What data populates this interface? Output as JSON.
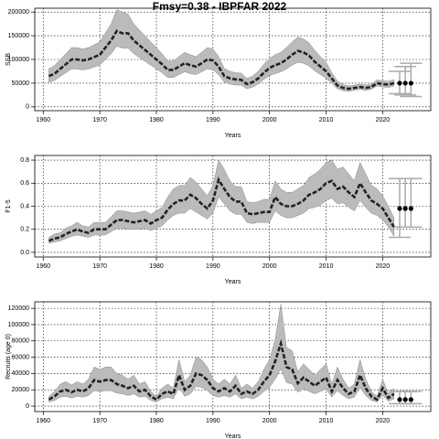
{
  "chart_data": [
    {
      "type": "line",
      "title": "Fmsy=0.38 - IBPFAR 2022",
      "x_label": "Years",
      "y_label": "SSB",
      "grid": true,
      "color": "#222222",
      "band_color": "#bbbbbb",
      "proj_color": "#aaaaaa",
      "xlim": [
        1958.5,
        2028.5
      ],
      "xticks": [
        1960,
        1970,
        1980,
        1990,
        2000,
        2010,
        2020
      ],
      "ylim": [
        -8000,
        208000
      ],
      "yticks": [
        0,
        50000,
        100000,
        150000,
        200000
      ],
      "x": [
        1961,
        1962,
        1963,
        1964,
        1965,
        1966,
        1967,
        1968,
        1969,
        1970,
        1971,
        1972,
        1973,
        1974,
        1975,
        1976,
        1977,
        1978,
        1979,
        1980,
        1981,
        1982,
        1983,
        1984,
        1985,
        1986,
        1987,
        1988,
        1989,
        1990,
        1991,
        1992,
        1993,
        1994,
        1995,
        1996,
        1997,
        1998,
        1999,
        2000,
        2001,
        2002,
        2003,
        2004,
        2005,
        2006,
        2007,
        2008,
        2009,
        2010,
        2011,
        2012,
        2013,
        2014,
        2015,
        2016,
        2017,
        2018,
        2019,
        2020,
        2021,
        2022
      ],
      "values": [
        65000,
        70000,
        80000,
        90000,
        100000,
        100000,
        98000,
        100000,
        105000,
        110000,
        125000,
        140000,
        160000,
        155000,
        155000,
        140000,
        130000,
        120000,
        110000,
        100000,
        90000,
        78000,
        78000,
        85000,
        92000,
        88000,
        85000,
        92000,
        100000,
        98000,
        85000,
        65000,
        60000,
        58000,
        57000,
        48000,
        52000,
        60000,
        72000,
        82000,
        88000,
        92000,
        100000,
        110000,
        118000,
        115000,
        108000,
        95000,
        85000,
        75000,
        60000,
        45000,
        40000,
        38000,
        40000,
        42000,
        40000,
        42000,
        50000,
        48000,
        47000,
        50000
      ],
      "lower": [
        52000,
        56000,
        64000,
        72000,
        80000,
        80000,
        78000,
        80000,
        84000,
        88000,
        100000,
        112000,
        128000,
        124000,
        124000,
        112000,
        104000,
        96000,
        88000,
        80000,
        72000,
        62000,
        62000,
        68000,
        74000,
        70000,
        68000,
        74000,
        80000,
        78000,
        68000,
        52000,
        48000,
        46000,
        46000,
        38000,
        42000,
        48000,
        58000,
        66000,
        70000,
        74000,
        80000,
        88000,
        94000,
        92000,
        86000,
        76000,
        68000,
        60000,
        50000,
        38000,
        34000,
        33000,
        35000,
        37000,
        35000,
        37000,
        44000,
        42000,
        41000,
        44000
      ],
      "upper": [
        80000,
        87000,
        100000,
        112000,
        125000,
        125000,
        122000,
        125000,
        131000,
        137000,
        156000,
        175000,
        205000,
        200000,
        195000,
        175000,
        162000,
        150000,
        137000,
        125000,
        112000,
        97000,
        97000,
        106000,
        115000,
        110000,
        106000,
        115000,
        125000,
        122000,
        106000,
        81000,
        75000,
        72000,
        71000,
        60000,
        65000,
        75000,
        90000,
        102000,
        110000,
        115000,
        125000,
        137000,
        147000,
        143000,
        135000,
        119000,
        106000,
        94000,
        72000,
        54000,
        47000,
        44000,
        46000,
        48000,
        46000,
        48000,
        57000,
        55000,
        54000,
        57000
      ],
      "proj_x": [
        2023,
        2024,
        2025
      ],
      "proj_values": [
        50000,
        50000,
        50000
      ],
      "proj_lower": [
        28000,
        25000,
        22000
      ],
      "proj_upper": [
        75000,
        85000,
        92000
      ]
    },
    {
      "type": "line",
      "x_label": "Years",
      "y_label": "F1-5",
      "grid": true,
      "color": "#222222",
      "band_color": "#bbbbbb",
      "proj_color": "#aaaaaa",
      "xlim": [
        1958.5,
        2028.5
      ],
      "xticks": [
        1960,
        1970,
        1980,
        1990,
        2000,
        2010,
        2020
      ],
      "ylim": [
        -0.04,
        0.84
      ],
      "yticks": [
        {
          "value": 0,
          "label": "0.0"
        },
        0.2,
        0.4,
        0.6,
        0.8
      ],
      "x": [
        1961,
        1962,
        1963,
        1964,
        1965,
        1966,
        1967,
        1968,
        1969,
        1970,
        1971,
        1972,
        1973,
        1974,
        1975,
        1976,
        1977,
        1978,
        1979,
        1980,
        1981,
        1982,
        1983,
        1984,
        1985,
        1986,
        1987,
        1988,
        1989,
        1990,
        1991,
        1992,
        1993,
        1994,
        1995,
        1996,
        1997,
        1998,
        1999,
        2000,
        2001,
        2002,
        2003,
        2004,
        2005,
        2006,
        2007,
        2008,
        2009,
        2010,
        2011,
        2012,
        2013,
        2014,
        2015,
        2016,
        2017,
        2018,
        2019,
        2020,
        2021,
        2022
      ],
      "values": [
        0.1,
        0.12,
        0.13,
        0.16,
        0.18,
        0.2,
        0.18,
        0.17,
        0.2,
        0.2,
        0.2,
        0.24,
        0.28,
        0.28,
        0.27,
        0.26,
        0.27,
        0.28,
        0.25,
        0.28,
        0.3,
        0.37,
        0.42,
        0.45,
        0.45,
        0.5,
        0.47,
        0.42,
        0.38,
        0.45,
        0.63,
        0.55,
        0.48,
        0.44,
        0.44,
        0.34,
        0.33,
        0.34,
        0.35,
        0.35,
        0.48,
        0.42,
        0.4,
        0.4,
        0.42,
        0.45,
        0.5,
        0.52,
        0.55,
        0.6,
        0.62,
        0.55,
        0.57,
        0.52,
        0.48,
        0.6,
        0.52,
        0.45,
        0.42,
        0.38,
        0.3,
        0.22
      ],
      "lower": [
        0.08,
        0.09,
        0.1,
        0.12,
        0.14,
        0.15,
        0.14,
        0.13,
        0.15,
        0.15,
        0.15,
        0.18,
        0.21,
        0.21,
        0.2,
        0.2,
        0.2,
        0.21,
        0.19,
        0.21,
        0.23,
        0.28,
        0.32,
        0.34,
        0.34,
        0.38,
        0.35,
        0.32,
        0.29,
        0.34,
        0.48,
        0.42,
        0.36,
        0.33,
        0.33,
        0.26,
        0.25,
        0.26,
        0.26,
        0.26,
        0.36,
        0.32,
        0.3,
        0.3,
        0.32,
        0.34,
        0.38,
        0.39,
        0.41,
        0.45,
        0.47,
        0.42,
        0.43,
        0.39,
        0.36,
        0.45,
        0.39,
        0.34,
        0.32,
        0.28,
        0.22,
        0.14
      ],
      "upper": [
        0.13,
        0.16,
        0.17,
        0.21,
        0.23,
        0.26,
        0.23,
        0.22,
        0.26,
        0.26,
        0.26,
        0.31,
        0.36,
        0.36,
        0.35,
        0.34,
        0.35,
        0.36,
        0.33,
        0.36,
        0.39,
        0.48,
        0.55,
        0.58,
        0.58,
        0.65,
        0.61,
        0.55,
        0.49,
        0.58,
        0.8,
        0.72,
        0.62,
        0.57,
        0.57,
        0.44,
        0.43,
        0.44,
        0.46,
        0.46,
        0.62,
        0.55,
        0.52,
        0.52,
        0.55,
        0.58,
        0.65,
        0.68,
        0.72,
        0.78,
        0.8,
        0.72,
        0.74,
        0.68,
        0.62,
        0.78,
        0.68,
        0.58,
        0.55,
        0.49,
        0.4,
        0.3
      ],
      "proj_x": [
        2023,
        2024,
        2025
      ],
      "proj_values": [
        0.38,
        0.38,
        0.38
      ],
      "proj_lower": [
        0.13,
        0.22,
        0.22
      ],
      "proj_upper": [
        0.64,
        0.64,
        0.64
      ]
    },
    {
      "type": "line",
      "x_label": "Years",
      "y_label": "Recruits (age 0)",
      "grid": true,
      "color": "#222222",
      "band_color": "#bbbbbb",
      "proj_color": "#aaaaaa",
      "xlim": [
        1958.5,
        2028.5
      ],
      "xticks": [
        1960,
        1970,
        1980,
        1990,
        2000,
        2010,
        2020
      ],
      "ylim": [
        -6700,
        128000
      ],
      "yticks": [
        0,
        20000,
        40000,
        60000,
        80000,
        100000,
        120000
      ],
      "x": [
        1961,
        1962,
        1963,
        1964,
        1965,
        1966,
        1967,
        1968,
        1969,
        1970,
        1971,
        1972,
        1973,
        1974,
        1975,
        1976,
        1977,
        1978,
        1979,
        1980,
        1981,
        1982,
        1983,
        1984,
        1985,
        1986,
        1987,
        1988,
        1989,
        1990,
        1991,
        1992,
        1993,
        1994,
        1995,
        1996,
        1997,
        1998,
        1999,
        2000,
        2001,
        2002,
        2003,
        2004,
        2005,
        2006,
        2007,
        2008,
        2009,
        2010,
        2011,
        2012,
        2013,
        2014,
        2015,
        2016,
        2017,
        2018,
        2019,
        2020,
        2021,
        2022
      ],
      "values": [
        8000,
        12000,
        18000,
        20000,
        17000,
        20000,
        18000,
        22000,
        32000,
        30000,
        32000,
        32000,
        27000,
        25000,
        22000,
        25000,
        18000,
        20000,
        12000,
        8000,
        15000,
        18000,
        15000,
        38000,
        20000,
        25000,
        40000,
        38000,
        32000,
        22000,
        18000,
        22000,
        18000,
        25000,
        15000,
        18000,
        15000,
        20000,
        30000,
        38000,
        55000,
        77000,
        48000,
        45000,
        28000,
        35000,
        30000,
        25000,
        30000,
        35000,
        18000,
        32000,
        22000,
        15000,
        18000,
        38000,
        22000,
        12000,
        8000,
        22000,
        10000,
        15000
      ],
      "lower": [
        5000,
        7000,
        11000,
        12000,
        10000,
        12000,
        11000,
        13000,
        19000,
        18000,
        19000,
        19000,
        16000,
        15000,
        13000,
        15000,
        11000,
        12000,
        7000,
        5000,
        9000,
        11000,
        9000,
        23000,
        12000,
        15000,
        24000,
        23000,
        19000,
        13000,
        11000,
        13000,
        11000,
        15000,
        9000,
        11000,
        9000,
        12000,
        18000,
        23000,
        33000,
        46000,
        29000,
        27000,
        17000,
        21000,
        18000,
        15000,
        18000,
        21000,
        11000,
        19000,
        13000,
        9000,
        11000,
        23000,
        13000,
        7000,
        5000,
        13000,
        6000,
        9000
      ],
      "upper": [
        12000,
        18000,
        27000,
        30000,
        26000,
        30000,
        27000,
        33000,
        48000,
        45000,
        48000,
        48000,
        40000,
        38000,
        33000,
        38000,
        27000,
        30000,
        18000,
        12000,
        22000,
        27000,
        22000,
        57000,
        30000,
        38000,
        60000,
        57000,
        48000,
        33000,
        27000,
        33000,
        27000,
        38000,
        22000,
        27000,
        22000,
        30000,
        45000,
        57000,
        82000,
        125000,
        72000,
        68000,
        42000,
        52000,
        45000,
        38000,
        45000,
        52000,
        27000,
        48000,
        33000,
        22000,
        27000,
        57000,
        33000,
        18000,
        12000,
        33000,
        15000,
        22000
      ],
      "proj_x": [
        2023,
        2024,
        2025
      ],
      "proj_values": [
        8000,
        8000,
        8000
      ],
      "proj_lower": [
        3000,
        3000,
        3000
      ],
      "proj_upper": [
        18000,
        18000,
        18000
      ]
    }
  ]
}
